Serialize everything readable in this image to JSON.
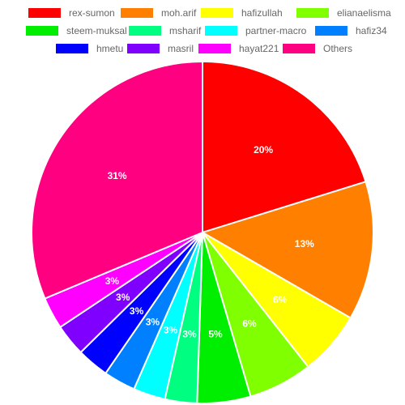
{
  "chart_data": {
    "type": "pie",
    "title": "",
    "legend": "top",
    "slices": [
      {
        "label": "rex-sumon",
        "value": 20,
        "color": "#ff0000"
      },
      {
        "label": "moh.arif",
        "value": 13,
        "color": "#ff8000"
      },
      {
        "label": "hafizullah",
        "value": 6,
        "color": "#ffff00"
      },
      {
        "label": "elianaelisma",
        "value": 6,
        "color": "#80ff00"
      },
      {
        "label": "steem-muksal",
        "value": 5,
        "color": "#00ee00"
      },
      {
        "label": "msharif",
        "value": 3,
        "color": "#00ff80"
      },
      {
        "label": "partner-macro",
        "value": 3,
        "color": "#00ffff"
      },
      {
        "label": "hafiz34",
        "value": 3,
        "color": "#0080ff"
      },
      {
        "label": "hmetu",
        "value": 3,
        "color": "#0000ff"
      },
      {
        "label": "masril",
        "value": 3,
        "color": "#8000ff"
      },
      {
        "label": "hayat221",
        "value": 3,
        "color": "#ff00ff"
      },
      {
        "label": "Others",
        "value": 31,
        "color": "#ff0080"
      }
    ],
    "percent_labels": [
      "20%",
      "13%",
      "6%",
      "6%",
      "5%",
      "3%",
      "3%",
      "3%",
      "3%",
      "3%",
      "3%",
      "31%"
    ]
  }
}
